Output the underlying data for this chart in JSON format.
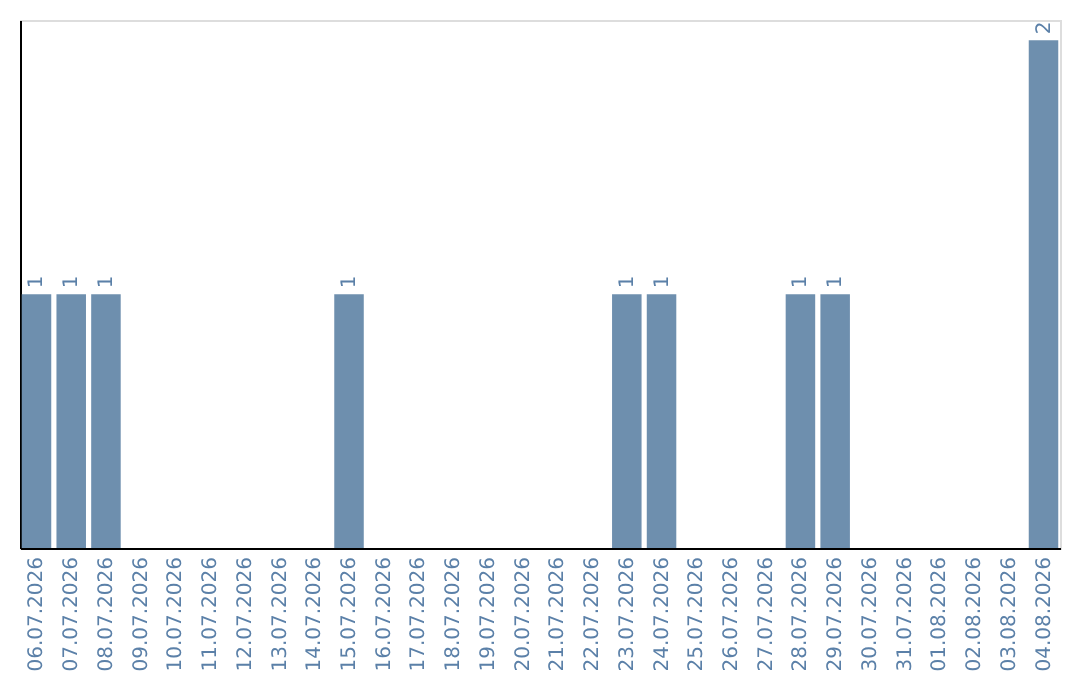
{
  "chart_data": {
    "type": "bar",
    "categories": [
      "06.07.2026",
      "07.07.2026",
      "08.07.2026",
      "09.07.2026",
      "10.07.2026",
      "11.07.2026",
      "12.07.2026",
      "13.07.2026",
      "14.07.2026",
      "15.07.2026",
      "16.07.2026",
      "17.07.2026",
      "18.07.2026",
      "19.07.2026",
      "20.07.2026",
      "21.07.2026",
      "22.07.2026",
      "23.07.2026",
      "24.07.2026",
      "25.07.2026",
      "26.07.2026",
      "27.07.2026",
      "28.07.2026",
      "29.07.2026",
      "30.07.2026",
      "31.07.2026",
      "01.08.2026",
      "02.08.2026",
      "03.08.2026",
      "04.08.2026"
    ],
    "values": [
      1,
      1,
      1,
      0,
      0,
      0,
      0,
      0,
      0,
      1,
      0,
      0,
      0,
      0,
      0,
      0,
      0,
      1,
      1,
      0,
      0,
      0,
      1,
      1,
      0,
      0,
      0,
      0,
      0,
      2
    ],
    "value_labels": [
      "1",
      "1",
      "1",
      null,
      null,
      null,
      null,
      null,
      null,
      "1",
      null,
      null,
      null,
      null,
      null,
      null,
      null,
      "1",
      "1",
      null,
      null,
      null,
      "1",
      "1",
      null,
      null,
      null,
      null,
      null,
      "2"
    ],
    "color": "#6e8fae",
    "ylim": [
      0,
      2.08
    ],
    "tick_labels": "x",
    "grid": false
  }
}
